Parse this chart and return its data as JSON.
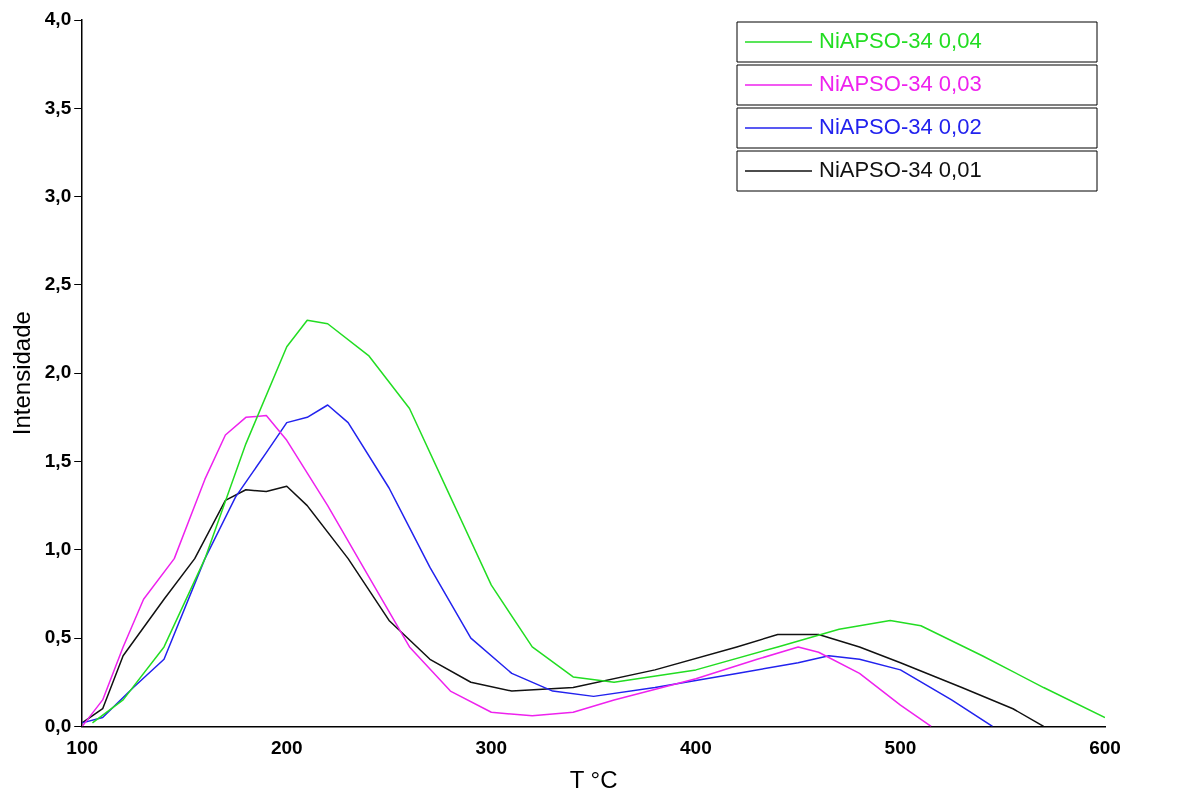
{
  "chart_data": {
    "type": "line",
    "xlabel": "T °C",
    "ylabel": "Intensidade",
    "xlim": [
      100,
      600
    ],
    "xticks": [
      100,
      200,
      300,
      400,
      500,
      600
    ],
    "ylim": [
      0,
      4
    ],
    "yticks": [
      {
        "value": 0,
        "label": "0,0"
      },
      {
        "value": 0.5,
        "label": "0,5"
      },
      {
        "value": 1,
        "label": "1,0"
      },
      {
        "value": 1.5,
        "label": "1,5"
      },
      {
        "value": 2,
        "label": "2,0"
      },
      {
        "value": 2.5,
        "label": "2,5"
      },
      {
        "value": 3,
        "label": "3,0"
      },
      {
        "value": 3.5,
        "label": "3,5"
      },
      {
        "value": 4,
        "label": "4,0"
      }
    ],
    "grid": false,
    "legend": "top right",
    "marker": "none",
    "line_style": "solid",
    "series": [
      {
        "name": "NiAPSO-34 0,04",
        "color": "#22dd22",
        "x": [
          105,
          120,
          140,
          160,
          180,
          200,
          210,
          220,
          240,
          260,
          280,
          300,
          320,
          340,
          360,
          400,
          440,
          470,
          495,
          510,
          540,
          570,
          600
        ],
        "values": [
          0.02,
          0.15,
          0.45,
          0.95,
          1.6,
          2.15,
          2.3,
          2.28,
          2.1,
          1.8,
          1.3,
          0.8,
          0.45,
          0.28,
          0.25,
          0.32,
          0.45,
          0.55,
          0.6,
          0.57,
          0.4,
          0.22,
          0.05
        ]
      },
      {
        "name": "NiAPSO-34 0,03",
        "color": "#ee22ee",
        "x": [
          100,
          110,
          120,
          130,
          145,
          160,
          170,
          180,
          190,
          200,
          220,
          240,
          260,
          280,
          300,
          320,
          340,
          360,
          400,
          430,
          450,
          460,
          480,
          500,
          515
        ],
        "values": [
          0,
          0.15,
          0.45,
          0.72,
          0.95,
          1.4,
          1.65,
          1.75,
          1.76,
          1.62,
          1.25,
          0.85,
          0.45,
          0.2,
          0.08,
          0.06,
          0.08,
          0.15,
          0.27,
          0.38,
          0.45,
          0.42,
          0.3,
          0.12,
          0
        ]
      },
      {
        "name": "NiAPSO-34 0,02",
        "color": "#2222ee",
        "x": [
          100,
          110,
          125,
          140,
          160,
          175,
          190,
          200,
          210,
          220,
          230,
          250,
          270,
          290,
          310,
          330,
          350,
          380,
          420,
          450,
          465,
          480,
          500,
          525,
          545
        ],
        "values": [
          0.02,
          0.05,
          0.22,
          0.38,
          0.95,
          1.3,
          1.55,
          1.72,
          1.75,
          1.82,
          1.72,
          1.35,
          0.9,
          0.5,
          0.3,
          0.2,
          0.17,
          0.22,
          0.3,
          0.36,
          0.4,
          0.38,
          0.32,
          0.15,
          0
        ]
      },
      {
        "name": "NiAPSO-34 0,01",
        "color": "#111111",
        "x": [
          100,
          110,
          120,
          140,
          155,
          170,
          180,
          190,
          200,
          210,
          230,
          250,
          270,
          290,
          310,
          340,
          380,
          420,
          440,
          460,
          480,
          500,
          530,
          555,
          570
        ],
        "values": [
          0.02,
          0.1,
          0.4,
          0.72,
          0.95,
          1.28,
          1.34,
          1.33,
          1.36,
          1.25,
          0.95,
          0.6,
          0.38,
          0.25,
          0.2,
          0.22,
          0.32,
          0.45,
          0.52,
          0.52,
          0.45,
          0.36,
          0.22,
          0.1,
          0
        ]
      }
    ]
  }
}
